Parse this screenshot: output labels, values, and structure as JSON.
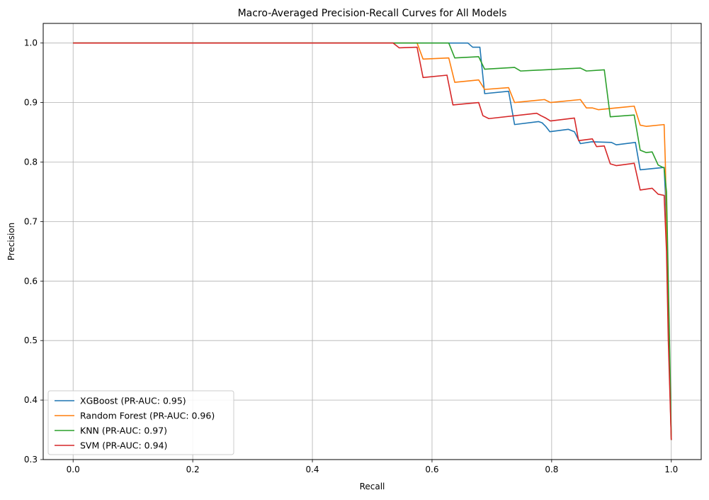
{
  "chart_data": {
    "type": "line",
    "title": "Macro-Averaged Precision-Recall Curves for All Models",
    "xlabel": "Recall",
    "ylabel": "Precision",
    "xlim": [
      -0.05,
      1.05
    ],
    "ylim": [
      0.3,
      1.033
    ],
    "xticks": [
      0.0,
      0.2,
      0.4,
      0.6,
      0.8,
      1.0
    ],
    "xtick_labels": [
      "0.0",
      "0.2",
      "0.4",
      "0.6",
      "0.8",
      "1.0"
    ],
    "yticks": [
      0.3,
      0.4,
      0.5,
      0.6,
      0.7,
      0.8,
      0.9,
      1.0
    ],
    "ytick_labels": [
      "0.3",
      "0.4",
      "0.5",
      "0.6",
      "0.7",
      "0.8",
      "0.9",
      "1.0"
    ],
    "grid": true,
    "legend_position": "lower-left",
    "series": [
      {
        "name": "XGBoost (PR-AUC: 0.95)",
        "color": "#1f77b4",
        "x": [
          0.0,
          0.537,
          0.66,
          0.668,
          0.68,
          0.688,
          0.728,
          0.738,
          0.778,
          0.784,
          0.79,
          0.797,
          0.828,
          0.838,
          0.848,
          0.867,
          0.9,
          0.908,
          0.94,
          0.948,
          0.988,
          0.99,
          0.994,
          0.997,
          1.0
        ],
        "y": [
          1.0,
          1.0,
          1.0,
          0.993,
          0.993,
          0.915,
          0.919,
          0.863,
          0.868,
          0.866,
          0.86,
          0.851,
          0.855,
          0.851,
          0.831,
          0.834,
          0.833,
          0.829,
          0.833,
          0.787,
          0.791,
          0.75,
          0.6,
          0.45,
          0.333
        ]
      },
      {
        "name": "Random Forest (PR-AUC: 0.96)",
        "color": "#ff7f0e",
        "x": [
          0.0,
          0.575,
          0.585,
          0.628,
          0.638,
          0.678,
          0.688,
          0.728,
          0.738,
          0.788,
          0.798,
          0.848,
          0.858,
          0.868,
          0.878,
          0.888,
          0.938,
          0.948,
          0.958,
          0.988,
          0.99,
          0.994,
          0.997,
          1.0
        ],
        "y": [
          1.0,
          1.0,
          0.973,
          0.975,
          0.934,
          0.938,
          0.922,
          0.925,
          0.9,
          0.905,
          0.9,
          0.905,
          0.891,
          0.891,
          0.888,
          0.889,
          0.894,
          0.862,
          0.86,
          0.863,
          0.8,
          0.6,
          0.45,
          0.333
        ]
      },
      {
        "name": "KNN (PR-AUC: 0.97)",
        "color": "#2ca02c",
        "x": [
          0.0,
          0.628,
          0.638,
          0.678,
          0.688,
          0.738,
          0.748,
          0.848,
          0.858,
          0.888,
          0.898,
          0.938,
          0.948,
          0.958,
          0.968,
          0.978,
          0.988,
          0.992,
          0.995,
          0.998,
          1.0
        ],
        "y": [
          1.0,
          1.0,
          0.975,
          0.977,
          0.956,
          0.959,
          0.953,
          0.958,
          0.953,
          0.955,
          0.876,
          0.879,
          0.82,
          0.816,
          0.817,
          0.795,
          0.79,
          0.75,
          0.6,
          0.45,
          0.333
        ]
      },
      {
        "name": "SVM (PR-AUC: 0.94)",
        "color": "#d62728",
        "x": [
          0.0,
          0.535,
          0.545,
          0.575,
          0.585,
          0.625,
          0.635,
          0.678,
          0.685,
          0.695,
          0.775,
          0.782,
          0.79,
          0.798,
          0.838,
          0.845,
          0.868,
          0.875,
          0.888,
          0.898,
          0.908,
          0.938,
          0.948,
          0.968,
          0.978,
          0.988,
          0.992,
          0.995,
          0.998,
          1.0
        ],
        "y": [
          1.0,
          1.0,
          0.992,
          0.993,
          0.942,
          0.946,
          0.896,
          0.9,
          0.878,
          0.873,
          0.882,
          0.878,
          0.874,
          0.869,
          0.874,
          0.836,
          0.839,
          0.826,
          0.827,
          0.797,
          0.794,
          0.798,
          0.753,
          0.756,
          0.746,
          0.744,
          0.65,
          0.5,
          0.4,
          0.333
        ]
      }
    ]
  }
}
